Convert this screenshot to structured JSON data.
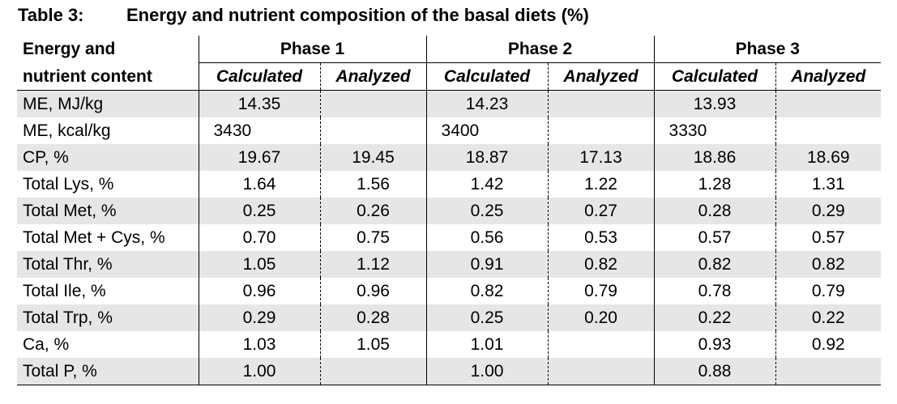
{
  "caption": {
    "number": "Table 3:",
    "title": "Energy and nutrient composition of the basal diets (%)"
  },
  "header": {
    "row_label_line1": "Energy and",
    "row_label_line2": "nutrient content",
    "phases": [
      "Phase 1",
      "Phase 2",
      "Phase 3"
    ],
    "sub": [
      "Calculated",
      "Analyzed",
      "Calculated",
      "Analyzed",
      "Calculated",
      "Analyzed"
    ]
  },
  "rows": [
    {
      "label": "ME, MJ/kg",
      "cells": [
        "14.35",
        "",
        "14.23",
        "",
        "13.93",
        ""
      ]
    },
    {
      "label": "ME, kcal/kg",
      "cells": [
        "3430",
        "",
        "3400",
        "",
        "3330",
        ""
      ]
    },
    {
      "label": "CP, %",
      "cells": [
        "19.67",
        "19.45",
        "18.87",
        "17.13",
        "18.86",
        "18.69"
      ]
    },
    {
      "label": "Total Lys, %",
      "cells": [
        "1.64",
        "1.56",
        "1.42",
        "1.22",
        "1.28",
        "1.31"
      ]
    },
    {
      "label": "Total Met, %",
      "cells": [
        "0.25",
        "0.26",
        "0.25",
        "0.27",
        "0.28",
        "0.29"
      ]
    },
    {
      "label": "Total Met + Cys, %",
      "cells": [
        "0.70",
        "0.75",
        "0.56",
        "0.53",
        "0.57",
        "0.57"
      ]
    },
    {
      "label": "Total Thr, %",
      "cells": [
        "1.05",
        "1.12",
        "0.91",
        "0.82",
        "0.82",
        "0.82"
      ]
    },
    {
      "label": "Total Ile, %",
      "cells": [
        "0.96",
        "0.96",
        "0.82",
        "0.79",
        "0.78",
        "0.79"
      ]
    },
    {
      "label": "Total Trp, %",
      "cells": [
        "0.29",
        "0.28",
        "0.25",
        "0.20",
        "0.22",
        "0.22"
      ]
    },
    {
      "label": "Ca, %",
      "cells": [
        "1.03",
        "1.05",
        "1.01",
        "",
        "0.93",
        "0.92"
      ]
    },
    {
      "label": "Total P, %",
      "cells": [
        "1.00",
        "",
        "1.00",
        "",
        "0.88",
        ""
      ]
    }
  ]
}
